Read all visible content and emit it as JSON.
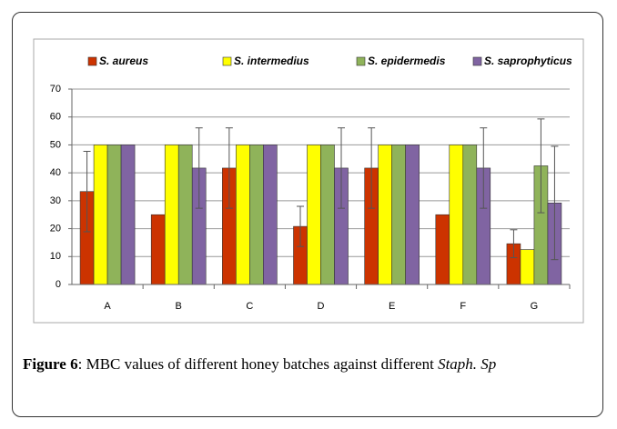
{
  "chart_data": {
    "type": "bar",
    "categories": [
      "A",
      "B",
      "C",
      "D",
      "E",
      "F",
      "G"
    ],
    "series": [
      {
        "name": "S. aureus",
        "color": "#cc3300",
        "values": [
          33.3,
          25,
          41.7,
          20.8,
          41.7,
          25,
          14.6
        ],
        "errors": [
          14.4,
          null,
          14.4,
          7.2,
          14.4,
          null,
          5
        ]
      },
      {
        "name": "S. intermedius",
        "color": "#ffff00",
        "values": [
          50,
          50,
          50,
          50,
          50,
          50,
          12.5
        ],
        "errors": [
          null,
          null,
          null,
          null,
          null,
          null,
          null
        ]
      },
      {
        "name": "S. epidermedis",
        "color": "#8fb35a",
        "values": [
          50,
          50,
          50,
          50,
          50,
          50,
          42.5
        ],
        "errors": [
          null,
          null,
          null,
          null,
          null,
          null,
          16.8
        ]
      },
      {
        "name": "S. saprophyticus",
        "color": "#8064a2",
        "values": [
          50,
          41.7,
          50,
          41.7,
          50,
          41.7,
          29.2
        ],
        "errors": [
          null,
          14.4,
          null,
          14.4,
          null,
          14.4,
          20.3
        ]
      }
    ],
    "ylim": [
      0,
      70
    ],
    "yticks": [
      0,
      10,
      20,
      30,
      40,
      50,
      60,
      70
    ],
    "grid": true,
    "legend": "top"
  },
  "caption": {
    "label": "Figure 6",
    "text": ": MBC values of different honey batches against different",
    "italic": "Staph. Sp"
  }
}
